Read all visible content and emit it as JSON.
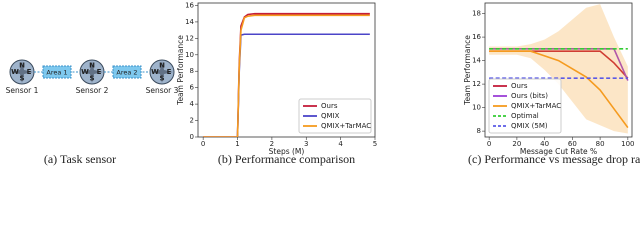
{
  "diagram": {
    "nodes": [
      {
        "label": "Sensor 1"
      },
      {
        "label": "Sensor 2"
      },
      {
        "label": "Sensor 3"
      }
    ],
    "areas": [
      "Area 1",
      "Area 2"
    ],
    "compass": [
      "N",
      "W",
      "E",
      "S"
    ],
    "caption": "(a) Task sensor"
  },
  "chart_data": [
    {
      "type": "line",
      "caption": "(b) Performance comparison",
      "xlabel": "Steps (M)",
      "ylabel": "Team Performance",
      "x": [
        0,
        0.5,
        1.0,
        1.05,
        1.1,
        1.2,
        1.3,
        1.5,
        2,
        2.5,
        3,
        3.5,
        4,
        4.5,
        4.85
      ],
      "xlim": [
        -0.15,
        5.0
      ],
      "ylim": [
        0,
        16.3
      ],
      "xticks": [
        0,
        1,
        2,
        3,
        4,
        5
      ],
      "yticks": [
        0,
        2,
        4,
        6,
        8,
        10,
        12,
        14,
        16
      ],
      "grid": false,
      "legend": "lower right",
      "series": [
        {
          "name": "Ours",
          "color": "#c41e3a",
          "values": [
            0,
            0,
            0,
            9,
            13.5,
            14.6,
            14.9,
            15,
            15,
            15,
            15,
            15,
            15,
            15,
            15
          ]
        },
        {
          "name": "QMIX",
          "color": "#4b45c8",
          "values": [
            0,
            0,
            0,
            8,
            12.4,
            12.5,
            12.5,
            12.5,
            12.5,
            12.5,
            12.5,
            12.5,
            12.5,
            12.5,
            12.5
          ]
        },
        {
          "name": "QMIX+TarMAC",
          "color": "#f59b1f",
          "values": [
            0,
            0,
            0,
            8.5,
            13,
            14.5,
            14.7,
            14.8,
            14.8,
            14.8,
            14.8,
            14.8,
            14.8,
            14.8,
            14.8
          ]
        }
      ]
    },
    {
      "type": "line",
      "caption": "(c) Performance vs message drop rate",
      "xlabel": "Message Cut Rate %",
      "ylabel": "Team Performance",
      "x": [
        0,
        10,
        20,
        30,
        40,
        50,
        60,
        70,
        80,
        90,
        100
      ],
      "xlim": [
        -3,
        103
      ],
      "ylim": [
        7.5,
        18.9
      ],
      "xticks": [
        0,
        20,
        40,
        60,
        80,
        100
      ],
      "yticks": [
        8,
        10,
        12,
        14,
        16,
        18
      ],
      "grid": false,
      "legend": "lower left",
      "series": [
        {
          "name": "Ours",
          "color": "#c41e3a",
          "values": [
            14.8,
            14.8,
            14.8,
            14.8,
            14.8,
            14.8,
            14.8,
            14.8,
            14.8,
            13.8,
            12.5
          ]
        },
        {
          "name": "Ours (bits)",
          "color": "#9b3fd6",
          "values": [
            15,
            15,
            15,
            15,
            15,
            15,
            15,
            15,
            15,
            15,
            12.3
          ]
        },
        {
          "name": "QMIX+TarMAC",
          "color": "#f59b1f",
          "values": [
            14.8,
            14.8,
            14.8,
            14.8,
            14.4,
            14.0,
            13.3,
            12.6,
            11.5,
            9.9,
            8.3
          ],
          "lower": [
            14.5,
            14.5,
            14.5,
            14.2,
            13.2,
            12,
            10.5,
            9,
            8.5,
            8,
            7.8
          ],
          "upper": [
            15.2,
            15.2,
            15.2,
            15.4,
            15.8,
            16.5,
            17.5,
            18.5,
            18.8,
            16,
            13.5
          ]
        },
        {
          "name": "Optimal",
          "color": "#33cc33",
          "dashed": true,
          "values": [
            15,
            15,
            15,
            15,
            15,
            15,
            15,
            15,
            15,
            15,
            15
          ]
        },
        {
          "name": "QMIX (5M)",
          "color": "#5a5ae6",
          "dashed": true,
          "values": [
            12.5,
            12.5,
            12.5,
            12.5,
            12.5,
            12.5,
            12.5,
            12.5,
            12.5,
            12.5,
            12.5
          ]
        }
      ]
    }
  ]
}
